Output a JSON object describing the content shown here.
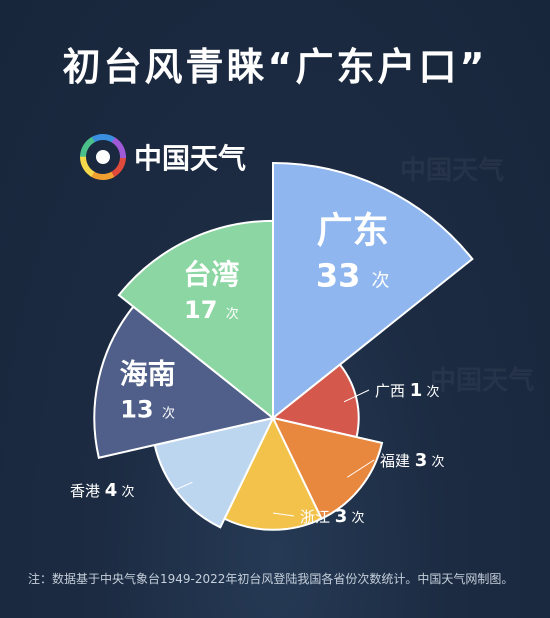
{
  "page": {
    "title": "初台风青睐“广东户口”",
    "brand_name": "中国天气",
    "footnote": "注：数据基于中央气象台1949-2022年初台风登陆我国各省份次数统计。中国天气网制图。",
    "count_suffix": "次"
  },
  "chart_data": {
    "type": "pie",
    "variant": "radial-sector",
    "value_unit": "次",
    "slices": [
      {
        "label": "广东",
        "value": 33,
        "color": "#8fb6ee"
      },
      {
        "label": "广西",
        "value": 1,
        "color": "#d4584c"
      },
      {
        "label": "福建",
        "value": 3,
        "color": "#e8873e"
      },
      {
        "label": "浙江",
        "value": 3,
        "color": "#f2c24b"
      },
      {
        "label": "香港",
        "value": 4,
        "color": "#bdd6ef"
      },
      {
        "label": "海南",
        "value": 13,
        "color": "#4f5f89"
      },
      {
        "label": "台湾",
        "value": 17,
        "color": "#8bd6a2"
      }
    ],
    "legend": "none"
  }
}
